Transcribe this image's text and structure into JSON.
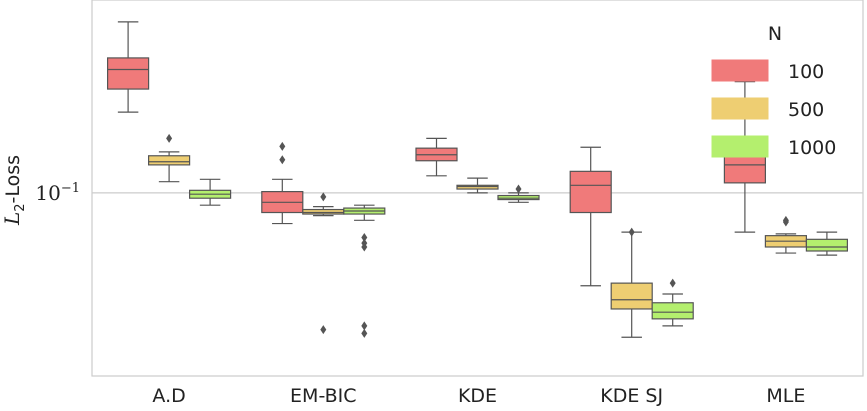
{
  "chart_data": {
    "type": "boxplot",
    "title": "",
    "xlabel": "",
    "ylabel": "L_2-Loss",
    "ylabel_parts": {
      "symbol": "L",
      "subscript": "2",
      "suffix": "-Loss"
    },
    "yscale": "log",
    "ylim": [
      0.0245,
      0.44
    ],
    "yticks": [
      {
        "value": 0.1,
        "base": "10",
        "exponent": "−1"
      }
    ],
    "grid": "horizontal",
    "categories": [
      "A.D",
      "EM-BIC",
      "KDE",
      "KDE SJ",
      "MLE"
    ],
    "legend": {
      "title": "N",
      "position": "top-right"
    },
    "series": [
      {
        "name": "100",
        "color": "#f07a7a",
        "boxes": [
          {
            "whislo": 0.186,
            "q1": 0.222,
            "med": 0.258,
            "q3": 0.282,
            "whishi": 0.372,
            "fliers": []
          },
          {
            "whislo": 0.079,
            "q1": 0.086,
            "med": 0.093,
            "q3": 0.101,
            "whishi": 0.111,
            "fliers": [
              0.143,
              0.129
            ]
          },
          {
            "whislo": 0.114,
            "q1": 0.128,
            "med": 0.134,
            "q3": 0.141,
            "whishi": 0.152,
            "fliers": []
          },
          {
            "whislo": 0.049,
            "q1": 0.086,
            "med": 0.106,
            "q3": 0.118,
            "whishi": 0.142,
            "fliers": []
          },
          {
            "whislo": 0.074,
            "q1": 0.108,
            "med": 0.124,
            "q3": 0.138,
            "whishi": 0.235,
            "fliers": []
          }
        ]
      },
      {
        "name": "500",
        "color": "#eece72",
        "boxes": [
          {
            "whislo": 0.109,
            "q1": 0.124,
            "med": 0.127,
            "q3": 0.133,
            "whishi": 0.137,
            "fliers": [
              0.152
            ]
          },
          {
            "whislo": 0.084,
            "q1": 0.085,
            "med": 0.086,
            "q3": 0.088,
            "whishi": 0.09,
            "fliers": [
              0.097,
              0.035
            ]
          },
          {
            "whislo": 0.1,
            "q1": 0.103,
            "med": 0.105,
            "q3": 0.106,
            "whishi": 0.112,
            "fliers": []
          },
          {
            "whislo": 0.033,
            "q1": 0.041,
            "med": 0.044,
            "q3": 0.05,
            "whishi": 0.074,
            "fliers": [
              0.074
            ]
          },
          {
            "whislo": 0.063,
            "q1": 0.066,
            "med": 0.069,
            "q3": 0.072,
            "whishi": 0.073,
            "fliers": [
              0.081,
              0.08
            ]
          }
        ]
      },
      {
        "name": "1000",
        "color": "#b4ef6e",
        "boxes": [
          {
            "whislo": 0.091,
            "q1": 0.096,
            "med": 0.099,
            "q3": 0.102,
            "whishi": 0.111,
            "fliers": []
          },
          {
            "whislo": 0.081,
            "q1": 0.085,
            "med": 0.087,
            "q3": 0.089,
            "whishi": 0.091,
            "fliers": [
              0.071,
              0.068,
              0.066,
              0.036,
              0.034
            ]
          },
          {
            "whislo": 0.093,
            "q1": 0.095,
            "med": 0.096,
            "q3": 0.098,
            "whishi": 0.1,
            "fliers": [
              0.103
            ]
          },
          {
            "whislo": 0.036,
            "q1": 0.038,
            "med": 0.04,
            "q3": 0.043,
            "whishi": 0.046,
            "fliers": [
              0.05
            ]
          },
          {
            "whislo": 0.062,
            "q1": 0.064,
            "med": 0.066,
            "q3": 0.07,
            "whishi": 0.074,
            "fliers": []
          }
        ]
      }
    ]
  }
}
